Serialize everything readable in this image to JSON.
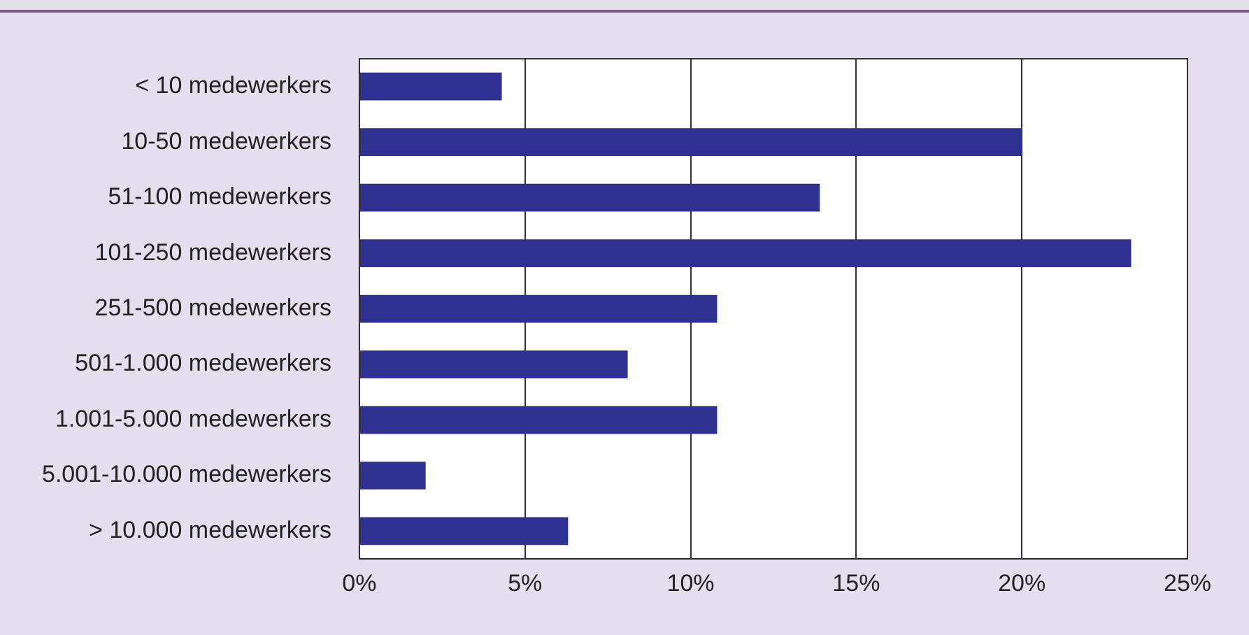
{
  "chart_data": {
    "type": "bar",
    "orientation": "horizontal",
    "categories": [
      "< 10 medewerkers",
      "10-50 medewerkers",
      "51-100 medewerkers",
      "101-250 medewerkers",
      "251-500 medewerkers",
      "501-1.000 medewerkers",
      "1.001-5.000 medewerkers",
      "5.001-10.000 medewerkers",
      "> 10.000 medewerkers"
    ],
    "values": [
      4.3,
      20.0,
      13.9,
      23.3,
      10.8,
      8.1,
      10.8,
      2.0,
      6.3
    ],
    "color": "#2e3192",
    "xlim": [
      0,
      25
    ],
    "xticks": [
      {
        "value": 0,
        "label": "0%"
      },
      {
        "value": 5,
        "label": "5%"
      },
      {
        "value": 10,
        "label": "10%"
      },
      {
        "value": 15,
        "label": "15%"
      },
      {
        "value": 20,
        "label": "20%"
      },
      {
        "value": 25,
        "label": "25%"
      }
    ],
    "grid": "x",
    "legend": false
  }
}
